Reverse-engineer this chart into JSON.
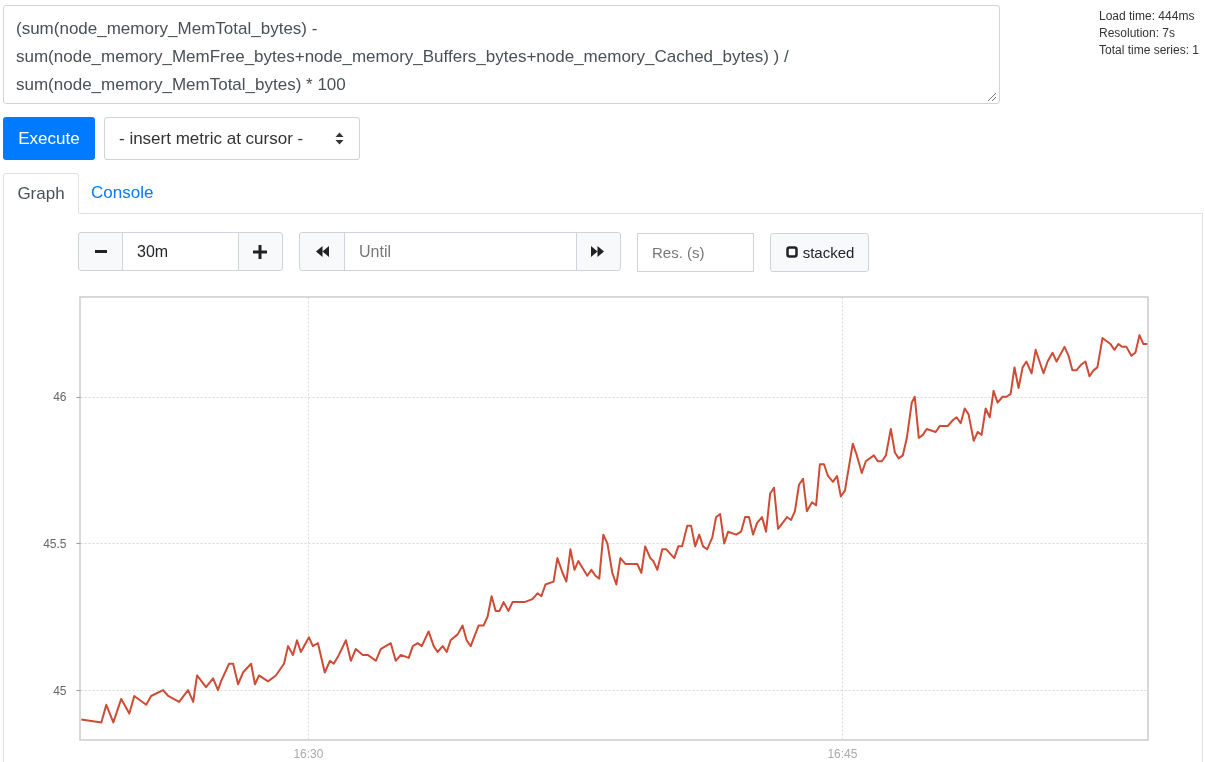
{
  "chart_data": {
    "type": "line",
    "title": "(sum(node_memory_MemTotal_bytes) - sum(node_memory_MemFree_bytes+node_memory_Buffers_bytes+node_memory_Cached_bytes) ) / sum(node_memory_MemTotal_bytes) * 100",
    "annotations": [
      "Load time: 444ms",
      "Resolution: 7s",
      "Total time series: 1",
      "Execute",
      "- insert metric at cursor -",
      "Graph",
      "Console",
      "30m",
      "Until",
      "Res. (s)",
      "stacked"
    ],
    "xlim": [
      16.3933,
      16.8933
    ],
    "xticks": [
      {
        "value": 16.5,
        "label": "16:30"
      },
      {
        "value": 16.75,
        "label": "16:45"
      }
    ],
    "ylim": [
      44.83,
      46.34
    ],
    "yticks": [
      45,
      45.5,
      46
    ],
    "grid": true,
    "series": [
      {
        "color": "#cd4c36",
        "x": [
          16.3939,
          16.4033,
          16.4056,
          16.4089,
          16.4126,
          16.4164,
          16.4187,
          16.4243,
          16.4266,
          16.4322,
          16.4346,
          16.4397,
          16.4439,
          16.4463,
          16.4481,
          16.4523,
          16.4556,
          16.4579,
          16.4593,
          16.4631,
          16.465,
          16.4673,
          16.4696,
          16.4734,
          16.4752,
          16.4771,
          16.4813,
          16.485,
          16.4888,
          16.4907,
          16.493,
          16.4949,
          16.4967,
          16.5005,
          16.5023,
          16.5047,
          16.5079,
          16.5103,
          16.5121,
          16.5145,
          16.5178,
          16.5201,
          16.5224,
          16.5257,
          16.528,
          16.5318,
          16.5341,
          16.5364,
          16.5388,
          16.5411,
          16.5435,
          16.5472,
          16.5491,
          16.5514,
          16.5533,
          16.5565,
          16.5589,
          16.5607,
          16.5631,
          16.565,
          16.5668,
          16.5701,
          16.5724,
          16.5743,
          16.5762,
          16.5799,
          16.5822,
          16.5841,
          16.586,
          16.5879,
          16.5897,
          16.5916,
          16.5939,
          16.5958,
          16.5995,
          16.6014,
          16.6051,
          16.6075,
          16.6093,
          16.6112,
          16.615,
          16.6168,
          16.6192,
          16.621,
          16.6229,
          16.6248,
          16.6266,
          16.6308,
          16.6327,
          16.6346,
          16.6364,
          16.6383,
          16.6402,
          16.6425,
          16.6444,
          16.6463,
          16.6486,
          16.6523,
          16.6542,
          16.6561,
          16.6579,
          16.6603,
          16.6617,
          16.6636,
          16.6659,
          16.6678,
          16.6715,
          16.6734,
          16.6752,
          16.6776,
          16.6794,
          16.6813,
          16.6832,
          16.685,
          16.6869,
          16.6893,
          16.6911,
          16.693,
          16.6949,
          16.6967,
          16.7005,
          16.7028,
          16.7047,
          16.7065,
          16.7084,
          16.7103,
          16.7126,
          16.7145,
          16.7164,
          16.7182,
          16.7201,
          16.7243,
          16.7262,
          16.728,
          16.7299,
          16.7318,
          16.7336,
          16.736,
          16.7379,
          16.7397,
          16.7416,
          16.7435,
          16.7458,
          16.7477,
          16.7495,
          16.7514,
          16.7551,
          16.757,
          16.7593,
          16.7612,
          16.765,
          16.7668,
          16.7687,
          16.7706,
          16.7729,
          16.7748,
          16.7766,
          16.7785,
          16.7804,
          16.7827,
          16.7841,
          16.786,
          16.7879,
          16.7897,
          16.7939,
          16.7958,
          16.7977,
          16.7995,
          16.8019,
          16.8037,
          16.8056,
          16.8075,
          16.8093,
          16.8117,
          16.8136,
          16.8154,
          16.8173,
          16.8192,
          16.821,
          16.8229,
          16.8252,
          16.8271,
          16.829,
          16.8308,
          16.8327,
          16.8346,
          16.8364,
          16.8388,
          16.8407,
          16.8425,
          16.8444,
          16.8463,
          16.8486,
          16.8505,
          16.8542,
          16.8561,
          16.8579,
          16.8598,
          16.8621,
          16.864,
          16.8659,
          16.8678,
          16.8696,
          16.872,
          16.8738,
          16.8757,
          16.8776,
          16.8794,
          16.8813,
          16.8832,
          16.8855,
          16.8874,
          16.8893,
          16.8911,
          16.893
        ],
        "values": [
          44.9,
          44.89,
          44.95,
          44.89,
          44.97,
          44.92,
          44.98,
          44.95,
          44.98,
          45.0,
          44.98,
          44.96,
          45.0,
          44.96,
          45.05,
          45.01,
          45.04,
          45.0,
          45.03,
          45.09,
          45.09,
          45.02,
          45.06,
          45.09,
          45.02,
          45.05,
          45.03,
          45.05,
          45.09,
          45.15,
          45.12,
          45.17,
          45.13,
          45.18,
          45.15,
          45.16,
          45.06,
          45.1,
          45.09,
          45.12,
          45.17,
          45.1,
          45.14,
          45.12,
          45.12,
          45.1,
          45.14,
          45.15,
          45.16,
          45.1,
          45.12,
          45.11,
          45.15,
          45.16,
          45.15,
          45.2,
          45.15,
          45.13,
          45.15,
          45.13,
          45.17,
          45.19,
          45.22,
          45.17,
          45.15,
          45.22,
          45.22,
          45.25,
          45.32,
          45.27,
          45.27,
          45.3,
          45.27,
          45.3,
          45.3,
          45.3,
          45.31,
          45.33,
          45.32,
          45.36,
          45.37,
          45.45,
          45.4,
          45.37,
          45.48,
          45.41,
          45.44,
          45.39,
          45.41,
          45.39,
          45.38,
          45.53,
          45.5,
          45.4,
          45.36,
          45.45,
          45.43,
          45.43,
          45.43,
          45.4,
          45.49,
          45.45,
          45.44,
          45.41,
          45.48,
          45.48,
          45.45,
          45.49,
          45.49,
          45.56,
          45.56,
          45.49,
          45.53,
          45.49,
          45.48,
          45.52,
          45.59,
          45.6,
          45.5,
          45.54,
          45.53,
          45.54,
          45.59,
          45.59,
          45.53,
          45.57,
          45.59,
          45.54,
          45.67,
          45.69,
          45.55,
          45.59,
          45.58,
          45.61,
          45.7,
          45.72,
          45.61,
          45.64,
          45.63,
          45.77,
          45.77,
          45.73,
          45.71,
          45.73,
          45.66,
          45.68,
          45.84,
          45.8,
          45.74,
          45.78,
          45.8,
          45.78,
          45.78,
          45.8,
          45.89,
          45.81,
          45.79,
          45.8,
          45.86,
          45.98,
          46.0,
          45.86,
          45.87,
          45.89,
          45.88,
          45.9,
          45.9,
          45.9,
          45.92,
          45.93,
          45.91,
          45.96,
          45.94,
          45.85,
          45.88,
          45.87,
          45.96,
          45.93,
          46.02,
          45.98,
          46.0,
          46.0,
          46.01,
          46.1,
          46.03,
          46.1,
          46.12,
          46.08,
          46.16,
          46.12,
          46.08,
          46.12,
          46.15,
          46.12,
          46.17,
          46.14,
          46.09,
          46.09,
          46.11,
          46.12,
          46.07,
          46.09,
          46.1,
          46.2,
          46.19,
          46.18,
          46.16,
          46.18,
          46.17,
          46.17,
          46.14,
          46.15,
          46.21,
          46.18,
          46.18
        ]
      }
    ]
  }
}
